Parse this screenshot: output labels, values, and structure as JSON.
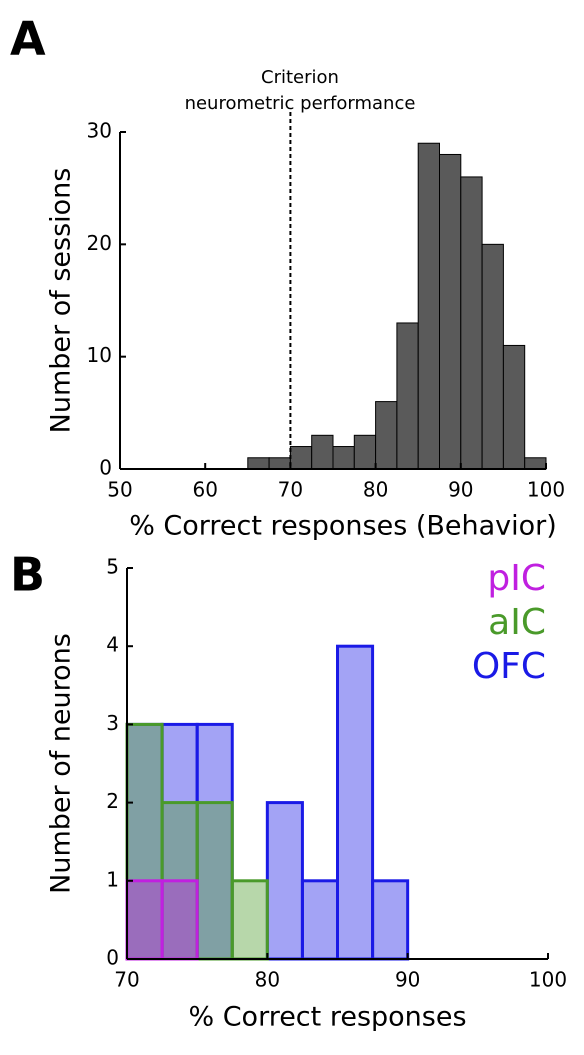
{
  "chart_data": [
    {
      "type": "histogram",
      "panel": "A",
      "xlabel": "% Correct responses (Behavior)",
      "ylabel": "Number of sessions",
      "annotation": [
        "Criterion",
        "neurometric performance"
      ],
      "criterion": 70,
      "bins": [
        65,
        67.5,
        70,
        72.5,
        75,
        77.5,
        80,
        82.5,
        85,
        87.5,
        90,
        92.5,
        95,
        97.5,
        100
      ],
      "values": [
        1,
        1,
        2,
        3,
        2,
        3,
        6,
        13,
        29,
        28,
        26,
        20,
        11,
        1
      ],
      "color": "#5a5a5a",
      "xlim": [
        50,
        100
      ],
      "xticks": [
        50,
        60,
        70,
        80,
        90,
        100
      ],
      "ylim": [
        0,
        30
      ],
      "yticks": [
        0,
        10,
        20,
        30
      ]
    },
    {
      "type": "histogram",
      "panel": "B",
      "xlabel": "% Correct responses",
      "ylabel": "Number of neurons",
      "bins": [
        70,
        72.5,
        75,
        77.5,
        80,
        82.5,
        85,
        87.5,
        90
      ],
      "series": [
        {
          "name": "OFC",
          "color": "#1a1ae6",
          "values": [
            3,
            3,
            3,
            0,
            2,
            1,
            4,
            1
          ]
        },
        {
          "name": "aIC",
          "color": "#4a9a2a",
          "values": [
            3,
            2,
            2,
            1,
            0,
            0,
            0,
            0
          ]
        },
        {
          "name": "pIC",
          "color": "#c020e0",
          "values": [
            1,
            1,
            0,
            0,
            0,
            0,
            0,
            0
          ]
        }
      ],
      "legend": "upper right",
      "xlim": [
        70,
        100
      ],
      "xticks": [
        70,
        80,
        90,
        100
      ],
      "ylim": [
        0,
        5
      ],
      "yticks": [
        0,
        1,
        2,
        3,
        4,
        5
      ]
    }
  ]
}
